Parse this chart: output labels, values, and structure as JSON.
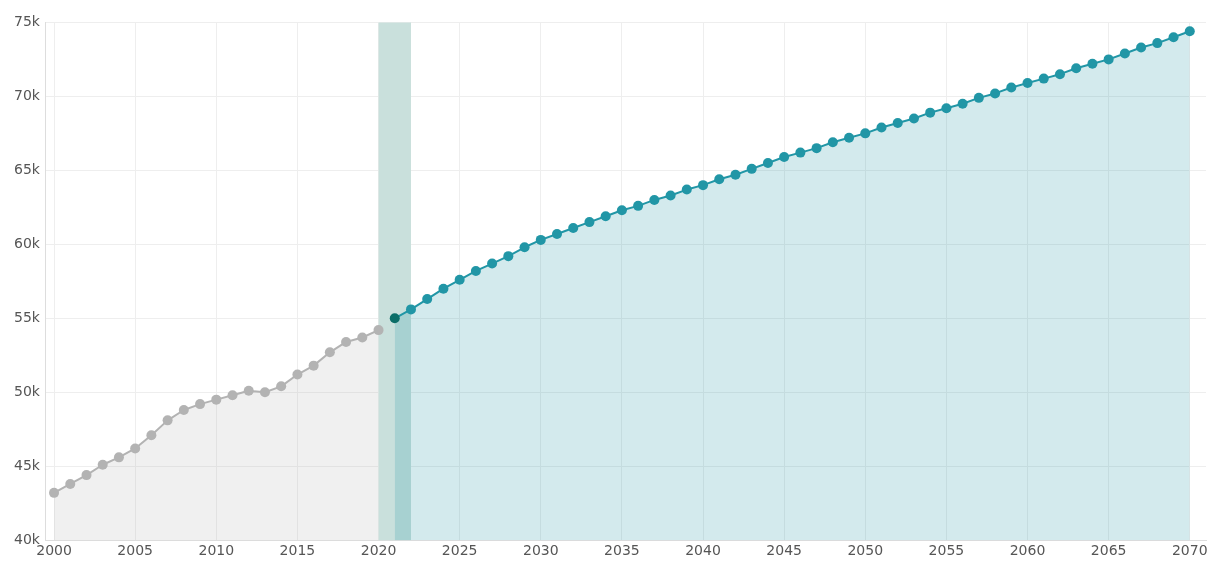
{
  "chart_data": {
    "type": "area",
    "xlim": [
      1999.5,
      2071
    ],
    "xticks": [
      2000,
      2005,
      2010,
      2015,
      2020,
      2025,
      2030,
      2035,
      2040,
      2045,
      2050,
      2055,
      2060,
      2065,
      2070
    ],
    "ylim": [
      40000,
      75000
    ],
    "yticks": [
      {
        "value": 40000,
        "label": "40k"
      },
      {
        "value": 45000,
        "label": "45k"
      },
      {
        "value": 50000,
        "label": "50k"
      },
      {
        "value": 55000,
        "label": "55k"
      },
      {
        "value": 60000,
        "label": "60k"
      },
      {
        "value": 65000,
        "label": "65k"
      },
      {
        "value": 70000,
        "label": "70k"
      },
      {
        "value": 75000,
        "label": "75k"
      }
    ],
    "grid": true,
    "legend": false,
    "marker": "circle",
    "bands": [
      {
        "axis": "x",
        "from": 2020,
        "to": 2022,
        "color": "#c9e0dc"
      }
    ],
    "series": [
      {
        "color": "#b3b3b3",
        "x": [
          2000,
          2001,
          2002,
          2003,
          2004,
          2005,
          2006,
          2007,
          2008,
          2009,
          2010,
          2011,
          2012,
          2013,
          2014,
          2015,
          2016,
          2017,
          2018,
          2019,
          2020
        ],
        "values": [
          43200,
          43800,
          44400,
          45100,
          45600,
          46200,
          47100,
          48100,
          48800,
          49200,
          49500,
          49800,
          50100,
          50000,
          50400,
          51200,
          51800,
          52700,
          53400,
          53700,
          54200
        ]
      },
      {
        "color": "#2196a6",
        "colors": [
          "#0b6e68",
          "#2196a6",
          "#2196a6",
          "#2196a6",
          "#2196a6",
          "#2196a6",
          "#2196a6",
          "#2196a6",
          "#2196a6",
          "#2196a6",
          "#2196a6",
          "#2196a6",
          "#2196a6",
          "#2196a6",
          "#2196a6",
          "#2196a6",
          "#2196a6",
          "#2196a6",
          "#2196a6",
          "#2196a6",
          "#2196a6",
          "#2196a6",
          "#2196a6",
          "#2196a6",
          "#2196a6",
          "#2196a6",
          "#2196a6",
          "#2196a6",
          "#2196a6",
          "#2196a6",
          "#2196a6",
          "#2196a6",
          "#2196a6",
          "#2196a6",
          "#2196a6",
          "#2196a6",
          "#2196a6",
          "#2196a6",
          "#2196a6",
          "#2196a6",
          "#2196a6",
          "#2196a6",
          "#2196a6",
          "#2196a6",
          "#2196a6",
          "#2196a6",
          "#2196a6",
          "#2196a6",
          "#2196a6",
          "#2196a6"
        ],
        "x": [
          2021,
          2022,
          2023,
          2024,
          2025,
          2026,
          2027,
          2028,
          2029,
          2030,
          2031,
          2032,
          2033,
          2034,
          2035,
          2036,
          2037,
          2038,
          2039,
          2040,
          2041,
          2042,
          2043,
          2044,
          2045,
          2046,
          2047,
          2048,
          2049,
          2050,
          2051,
          2052,
          2053,
          2054,
          2055,
          2056,
          2057,
          2058,
          2059,
          2060,
          2061,
          2062,
          2063,
          2064,
          2065,
          2066,
          2067,
          2068,
          2069,
          2070
        ],
        "values": [
          55000,
          55600,
          56300,
          57000,
          57600,
          58200,
          58700,
          59200,
          59800,
          60300,
          60700,
          61100,
          61500,
          61900,
          62300,
          62600,
          63000,
          63300,
          63700,
          64000,
          64400,
          64700,
          65100,
          65500,
          65900,
          66200,
          66500,
          66900,
          67200,
          67500,
          67900,
          68200,
          68500,
          68900,
          69200,
          69500,
          69900,
          70200,
          70600,
          70900,
          71200,
          71500,
          71900,
          72200,
          72500,
          72900,
          73300,
          73600,
          74000,
          74400
        ]
      }
    ]
  }
}
